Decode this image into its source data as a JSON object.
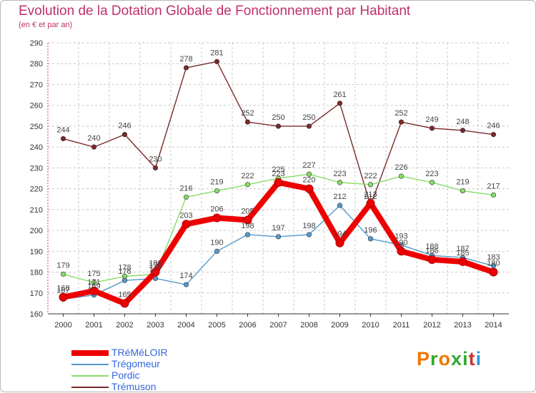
{
  "chart_data": {
    "type": "line",
    "title": "Evolution de la Dotation Globale de Fonctionnement par Habitant",
    "subtitle": "(en € et par an)",
    "xlabel": "",
    "ylabel": "",
    "ylim": [
      160,
      290
    ],
    "yticks": [
      160,
      170,
      180,
      190,
      200,
      210,
      220,
      230,
      240,
      250,
      260,
      270,
      280,
      290
    ],
    "x": [
      "2000",
      "2001",
      "2002",
      "2003",
      "2004",
      "2005",
      "2006",
      "2007",
      "2008",
      "2009",
      "2010",
      "2011",
      "2012",
      "2013",
      "2014"
    ],
    "grid": true,
    "legend": "bottom-left",
    "series": [
      {
        "name": "Trémuson",
        "color": "#7a2a2a",
        "values": [
          244,
          240,
          246,
          230,
          278,
          281,
          252,
          250,
          250,
          261,
          212,
          252,
          249,
          248,
          246
        ]
      },
      {
        "name": "Pordic",
        "color": "#88dd66",
        "values": [
          179,
          175,
          178,
          179,
          216,
          219,
          222,
          225,
          227,
          223,
          222,
          226,
          223,
          219,
          217
        ]
      },
      {
        "name": "Trégomeur",
        "color": "#5599cc",
        "values": [
          167,
          169,
          176,
          177,
          174,
          190,
          198,
          197,
          198,
          212,
          196,
          193,
          188,
          187,
          183
        ]
      },
      {
        "name": "TRéMéLOIR",
        "color": "#ee0000",
        "values": [
          168,
          171,
          165,
          180,
          203,
          206,
          205,
          223,
          220,
          194,
          213,
          190,
          186,
          185,
          180
        ]
      }
    ]
  },
  "logo": {
    "text": "Proxiti"
  }
}
